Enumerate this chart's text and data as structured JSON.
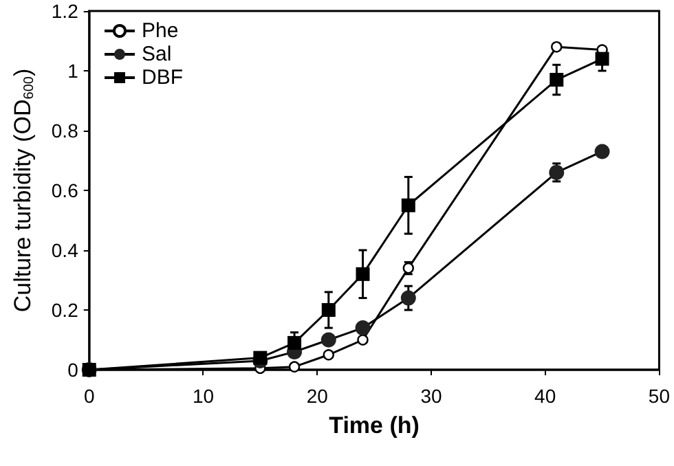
{
  "chart_data": {
    "type": "line",
    "xlabel": "Time (h)",
    "ylabel": "Culture turbidity (OD$_{600}$)",
    "x": [
      0,
      15,
      18,
      21,
      24,
      28,
      41,
      45
    ],
    "series": [
      {
        "name": "Phe",
        "color": "#ffffff",
        "marker": "circle",
        "values": [
          0,
          0.005,
          0.01,
          0.05,
          0.1,
          0.34,
          1.08,
          1.07
        ],
        "errors": [
          null,
          null,
          null,
          null,
          null,
          0.02,
          null,
          null
        ]
      },
      {
        "name": "Sal",
        "color": "#222222",
        "marker": "circle",
        "values": [
          0,
          0.03,
          0.06,
          0.1,
          0.14,
          0.24,
          0.66,
          0.73
        ],
        "errors": [
          null,
          null,
          null,
          null,
          null,
          0.04,
          0.03,
          null
        ]
      },
      {
        "name": "DBF",
        "color": "#000000",
        "marker": "square",
        "values": [
          0,
          0.04,
          0.09,
          0.2,
          0.32,
          0.55,
          0.97,
          1.04
        ],
        "errors": [
          null,
          null,
          0.035,
          0.06,
          0.08,
          0.095,
          0.05,
          0.04
        ]
      }
    ],
    "xlim": [
      0,
      50
    ],
    "xticks": [
      0,
      10,
      20,
      30,
      40,
      50
    ],
    "ylim": [
      0,
      1.2
    ],
    "yticks": [
      0,
      0.2,
      0.4,
      0.6,
      0.8,
      1,
      1.2
    ],
    "grid": false,
    "legend": "top left",
    "line_style": "solid"
  }
}
